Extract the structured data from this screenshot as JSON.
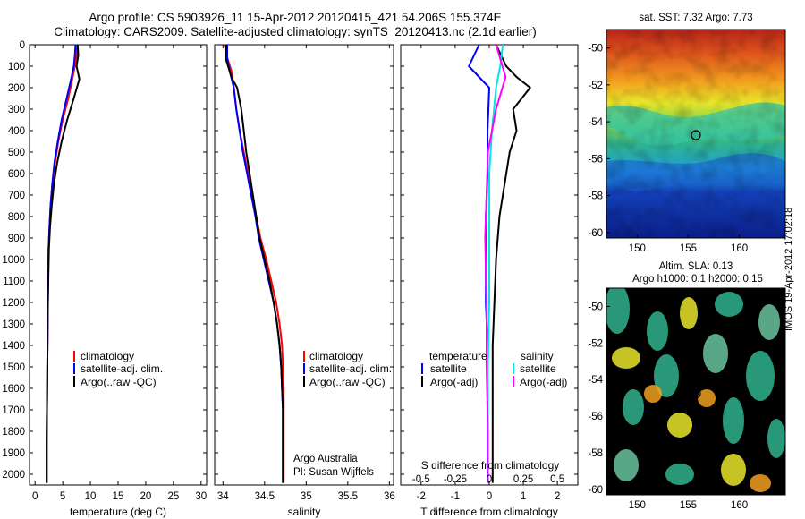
{
  "header": {
    "title_line1": "Argo profile: CS 5903926_11 15-Apr-2012 20120415_421 54.206S 155.374E",
    "title_line2": "Climatology: CARS2009. Satellite-adjusted climatology: synTS_20120413.nc (2.1d earlier)"
  },
  "colors": {
    "climatology": "#ff0000",
    "satellite": "#0000ff",
    "argo": "#000000",
    "sal_satellite": "#00e5e5",
    "sal_argo": "#ff00ff"
  },
  "panels": {
    "temperature": {
      "xlabel": "temperature (deg C)",
      "xticks": [
        "0",
        "5",
        "10",
        "15",
        "20",
        "25",
        "30"
      ],
      "legend": [
        "climatology",
        "satellite-adj. clim.",
        "Argo(..raw -QC)"
      ]
    },
    "salinity": {
      "xlabel": "salinity",
      "xticks": [
        "34",
        "34.5",
        "35",
        "35.5",
        "36"
      ],
      "legend": [
        "climatology",
        "satellite-adj. clim.",
        "Argo(..raw -QC)"
      ],
      "credit1": "Argo Australia",
      "credit2": "PI: Susan Wijffels"
    },
    "difference": {
      "xlabel": "T difference from climatology",
      "xticks": [
        "-2",
        "-1",
        "0",
        "1",
        "2"
      ],
      "s_label": "S difference from climatology",
      "s_ticks": [
        "-0.5",
        "-0.25",
        "0",
        "0.25",
        "0.5"
      ],
      "legend_t_title": "temperature",
      "legend_s_title": "salinity",
      "legend_t": [
        "satellite",
        "Argo(-adj)"
      ],
      "legend_s": [
        "satellite",
        "Argo(-adj)"
      ]
    }
  },
  "yticks": [
    "0",
    "100",
    "200",
    "300",
    "400",
    "500",
    "600",
    "700",
    "800",
    "900",
    "1000",
    "1100",
    "1200",
    "1300",
    "1400",
    "1500",
    "1600",
    "1700",
    "1800",
    "1900",
    "2000"
  ],
  "maps": {
    "sst": {
      "title": "sat. SST: 7.32 Argo: 7.73",
      "xticks": [
        "150",
        "155",
        "160"
      ],
      "yticks": [
        "-50",
        "-52",
        "-54",
        "-56",
        "-58",
        "-60"
      ]
    },
    "sla": {
      "title1": "Altim. SLA: 0.13",
      "title2": "Argo h1000: 0.1 h2000: 0.15",
      "xticks": [
        "150",
        "155",
        "160"
      ],
      "yticks": [
        "-50",
        "-52",
        "-54",
        "-56",
        "-58",
        "-60"
      ]
    }
  },
  "side_text": "IMOS 19-Apr-2012 17:02:18",
  "chart_data": [
    {
      "type": "line",
      "title": "",
      "xlabel": "temperature (deg C)",
      "ylabel": "",
      "xlim": [
        -1,
        31
      ],
      "ylim": [
        2050,
        0
      ],
      "series": [
        {
          "name": "climatology",
          "x": [
            7.6,
            7.5,
            7.2,
            6.8,
            6.0,
            5.0,
            4.2,
            3.6,
            3.1,
            2.8,
            2.6,
            2.45,
            2.35,
            2.3,
            2.25,
            2.2,
            2.15,
            2.1,
            2.1,
            2.1
          ],
          "y": [
            0,
            50,
            100,
            150,
            250,
            350,
            450,
            550,
            650,
            750,
            850,
            950,
            1100,
            1250,
            1400,
            1550,
            1700,
            1850,
            1950,
            2040
          ]
        },
        {
          "name": "satellite-adj. clim.",
          "x": [
            7.3,
            7.2,
            7.0,
            6.6,
            5.7,
            4.8,
            4.1,
            3.5,
            3.1,
            2.8,
            2.6,
            2.45,
            2.35,
            2.3,
            2.25,
            2.2,
            2.15,
            2.1,
            2.1,
            2.1
          ],
          "y": [
            0,
            50,
            100,
            150,
            250,
            350,
            450,
            550,
            650,
            750,
            850,
            950,
            1100,
            1250,
            1400,
            1550,
            1700,
            1850,
            1950,
            2040
          ]
        },
        {
          "name": "Argo(..raw -QC)",
          "x": [
            7.7,
            7.8,
            7.5,
            8.0,
            7.0,
            5.8,
            4.8,
            4.0,
            3.4,
            3.0,
            2.7,
            2.5,
            2.4,
            2.3,
            2.25,
            2.2,
            2.15,
            2.1,
            2.1,
            2.1
          ],
          "y": [
            0,
            50,
            100,
            160,
            250,
            350,
            450,
            550,
            650,
            750,
            850,
            950,
            1100,
            1250,
            1400,
            1550,
            1700,
            1850,
            1950,
            2040
          ]
        }
      ]
    },
    {
      "type": "line",
      "title": "",
      "xlabel": "salinity",
      "ylabel": "",
      "xlim": [
        33.9,
        36.05
      ],
      "ylim": [
        2050,
        0
      ],
      "series": [
        {
          "name": "climatology",
          "x": [
            34.02,
            34.05,
            34.1,
            34.13,
            34.16,
            34.2,
            34.25,
            34.3,
            34.35,
            34.4,
            34.45,
            34.52,
            34.58,
            34.64,
            34.68,
            34.71,
            34.72,
            34.73,
            34.73,
            34.73
          ],
          "y": [
            0,
            60,
            120,
            200,
            300,
            400,
            500,
            600,
            700,
            800,
            900,
            1000,
            1100,
            1200,
            1300,
            1400,
            1500,
            1600,
            1700,
            2040
          ]
        },
        {
          "name": "satellite-adj. clim.",
          "x": [
            34.05,
            34.05,
            34.08,
            34.13,
            34.16,
            34.2,
            34.24,
            34.29,
            34.34,
            34.39,
            34.43,
            34.49,
            34.55,
            34.61,
            34.65,
            34.68,
            34.7,
            34.71,
            34.72,
            34.72
          ],
          "y": [
            0,
            60,
            120,
            200,
            300,
            400,
            500,
            600,
            700,
            800,
            900,
            1000,
            1100,
            1200,
            1300,
            1400,
            1500,
            1600,
            1700,
            2040
          ]
        },
        {
          "name": "Argo(..raw -QC)",
          "x": [
            34.04,
            34.03,
            34.1,
            34.17,
            34.22,
            34.25,
            34.28,
            34.32,
            34.36,
            34.4,
            34.44,
            34.5,
            34.56,
            34.61,
            34.65,
            34.68,
            34.7,
            34.71,
            34.72,
            34.72
          ],
          "y": [
            0,
            60,
            150,
            200,
            300,
            400,
            500,
            600,
            700,
            800,
            900,
            1000,
            1100,
            1200,
            1300,
            1400,
            1500,
            1600,
            1700,
            2040
          ]
        }
      ]
    },
    {
      "type": "line",
      "title": "",
      "xlabel": "T difference from climatology",
      "ylabel": "",
      "xlim": [
        -2.6,
        2.6
      ],
      "ylim": [
        2050,
        0
      ],
      "series": [
        {
          "name": "temperature satellite",
          "x": [
            -0.3,
            -0.6,
            -0.3,
            0.0,
            -0.05,
            -0.05,
            -0.1,
            -0.1,
            -0.1,
            -0.05,
            -0.05,
            -0.05,
            -0.05,
            -0.05,
            -0.05,
            -0.05
          ],
          "y": [
            0,
            100,
            150,
            200,
            400,
            600,
            800,
            1000,
            1200,
            1400,
            1600,
            1800,
            2040,
            2040,
            2040,
            2040
          ]
        },
        {
          "name": "temperature Argo(-adj)",
          "x": [
            0.2,
            0.5,
            0.8,
            1.2,
            0.7,
            0.8,
            0.6,
            0.5,
            0.4,
            0.3,
            0.25,
            0.2,
            0.15,
            0.1,
            0.1,
            0.1
          ],
          "y": [
            0,
            100,
            150,
            200,
            300,
            400,
            500,
            600,
            700,
            800,
            900,
            1000,
            1200,
            1400,
            1800,
            2040
          ]
        },
        {
          "name": "salinity satellite",
          "x": [
            0.1,
            0.08,
            0.05,
            0.02,
            0.0,
            0.0,
            0.0,
            -0.01,
            -0.01,
            -0.01
          ],
          "y": [
            0,
            100,
            200,
            400,
            600,
            900,
            1200,
            1500,
            1800,
            2040
          ]
        },
        {
          "name": "salinity Argo(-adj)",
          "x": [
            0.05,
            0.12,
            0.05,
            -0.01,
            -0.02,
            -0.03,
            -0.02,
            -0.02,
            -0.01,
            -0.01
          ],
          "y": [
            0,
            150,
            300,
            500,
            700,
            900,
            1200,
            1500,
            1800,
            2040
          ]
        }
      ]
    }
  ]
}
